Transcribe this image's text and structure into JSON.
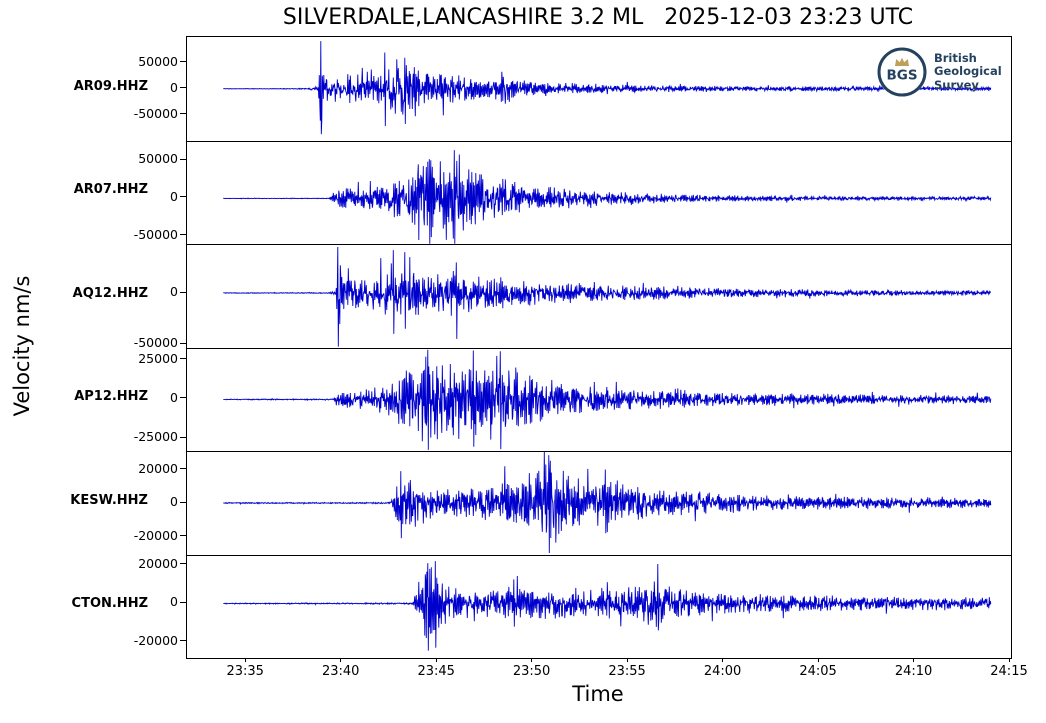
{
  "logo": {
    "abbr": "BGS",
    "line1": "British",
    "line2": "Geological",
    "line3": "Survey",
    "navy": "#24425f",
    "gold": "#bfa05a"
  },
  "chart_data": {
    "type": "line",
    "title": "SILVERDALE,LANCASHIRE 3.2 ML   2025-12-03 23:23 UTC",
    "xlabel": "Time",
    "ylabel": "Velocity nm/s",
    "trace_color": "#0000cd",
    "axis_color": "#000000",
    "grid": false,
    "t_min": 31.9,
    "t_max": 75.05,
    "x_ticks": [
      {
        "t": 35,
        "label": "23:35"
      },
      {
        "t": 40,
        "label": "23:40"
      },
      {
        "t": 45,
        "label": "23:45"
      },
      {
        "t": 50,
        "label": "23:50"
      },
      {
        "t": 55,
        "label": "23:55"
      },
      {
        "t": 60,
        "label": "24:00"
      },
      {
        "t": 65,
        "label": "24:05"
      },
      {
        "t": 70,
        "label": "24:10"
      },
      {
        "t": 75,
        "label": "24:15"
      }
    ],
    "stations": [
      {
        "label": "AR09.HHZ",
        "seed": 11,
        "ylim": [
          -100000,
          100000
        ],
        "yticks": [
          50000,
          0,
          -50000
        ],
        "data_start": 33.8,
        "data_end": 74.0,
        "envelope": [
          [
            33.8,
            500
          ],
          [
            37.5,
            700
          ],
          [
            38.3,
            1500
          ],
          [
            38.75,
            6000
          ],
          [
            38.9,
            95000
          ],
          [
            39.1,
            30000
          ],
          [
            39.6,
            28000
          ],
          [
            40.5,
            30000
          ],
          [
            41.5,
            25000
          ],
          [
            42.3,
            45000
          ],
          [
            42.9,
            60000
          ],
          [
            43.4,
            50000
          ],
          [
            44.2,
            35000
          ],
          [
            45.5,
            30000
          ],
          [
            46.5,
            28000
          ],
          [
            47.5,
            22000
          ],
          [
            48.6,
            30000
          ],
          [
            49.5,
            18000
          ],
          [
            51,
            13000
          ],
          [
            53,
            10000
          ],
          [
            55.5,
            7500
          ],
          [
            58,
            6000
          ],
          [
            61,
            5200
          ],
          [
            64,
            4800
          ],
          [
            68,
            4300
          ],
          [
            71,
            4000
          ],
          [
            74,
            3800
          ]
        ],
        "spikes": [
          [
            38.9,
            92000,
            -88000
          ],
          [
            42.25,
            70000,
            -72000
          ],
          [
            43.3,
            60000,
            -68000
          ]
        ]
      },
      {
        "label": "AR07.HHZ",
        "seed": 22,
        "ylim": [
          -61000,
          76000
        ],
        "yticks": [
          50000,
          0,
          -50000
        ],
        "data_start": 33.8,
        "data_end": 74.0,
        "envelope": [
          [
            33.8,
            400
          ],
          [
            39.3,
            500
          ],
          [
            39.6,
            9000
          ],
          [
            40.2,
            16000
          ],
          [
            41,
            14000
          ],
          [
            42,
            18000
          ],
          [
            43,
            28000
          ],
          [
            43.8,
            40000
          ],
          [
            44.5,
            60000
          ],
          [
            45.3,
            55000
          ],
          [
            46.2,
            60000
          ],
          [
            47,
            40000
          ],
          [
            48,
            28000
          ],
          [
            49.5,
            20000
          ],
          [
            51,
            15000
          ],
          [
            53,
            11000
          ],
          [
            55,
            8000
          ],
          [
            57.5,
            6000
          ],
          [
            60,
            4500
          ],
          [
            63,
            3500
          ],
          [
            66.5,
            3000
          ],
          [
            70,
            2700
          ],
          [
            74,
            2500
          ]
        ],
        "spikes": [
          [
            44.0,
            45000,
            -55000
          ],
          [
            44.6,
            52000,
            -60000
          ],
          [
            45.9,
            64000,
            -60000
          ]
        ]
      },
      {
        "label": "AQ12.HHZ",
        "seed": 33,
        "ylim": [
          -53400,
          48000
        ],
        "yticks": [
          0,
          -50000
        ],
        "data_start": 33.8,
        "data_end": 74.0,
        "envelope": [
          [
            33.8,
            350
          ],
          [
            39.3,
            450
          ],
          [
            39.7,
            2000
          ],
          [
            39.8,
            45000
          ],
          [
            40.1,
            18000
          ],
          [
            41,
            14000
          ],
          [
            41.8,
            17000
          ],
          [
            42.5,
            30000
          ],
          [
            43.2,
            32000
          ],
          [
            44,
            25000
          ],
          [
            44.8,
            22000
          ],
          [
            45.8,
            26000
          ],
          [
            46.5,
            22000
          ],
          [
            47.5,
            18000
          ],
          [
            49,
            14000
          ],
          [
            50.5,
            12000
          ],
          [
            52.5,
            10000
          ],
          [
            54.5,
            8000
          ],
          [
            57,
            6500
          ],
          [
            59.5,
            5000
          ],
          [
            62,
            4200
          ],
          [
            65,
            3600
          ],
          [
            68,
            3200
          ],
          [
            71,
            2900
          ],
          [
            74,
            2700
          ]
        ],
        "spikes": [
          [
            39.8,
            45000,
            -52500
          ],
          [
            42.7,
            42000,
            -40000
          ],
          [
            43.3,
            40000,
            -35000
          ],
          [
            46.0,
            30000,
            -45000
          ]
        ]
      },
      {
        "label": "AP12.HHZ",
        "seed": 44,
        "ylim": [
          -33000,
          32600
        ],
        "yticks": [
          25000,
          0,
          -25000
        ],
        "data_start": 33.8,
        "data_end": 74.0,
        "envelope": [
          [
            33.8,
            300
          ],
          [
            39.5,
            400
          ],
          [
            39.9,
            4500
          ],
          [
            40.8,
            6500
          ],
          [
            41.8,
            8000
          ],
          [
            42.6,
            12000
          ],
          [
            43.4,
            20000
          ],
          [
            44.3,
            28000
          ],
          [
            45.2,
            30000
          ],
          [
            46.2,
            26000
          ],
          [
            47.2,
            28000
          ],
          [
            48.2,
            29000
          ],
          [
            49,
            22000
          ],
          [
            50,
            16000
          ],
          [
            51.2,
            12000
          ],
          [
            52.5,
            9500
          ],
          [
            54,
            8000
          ],
          [
            56,
            6500
          ],
          [
            58.5,
            5200
          ],
          [
            61,
            4400
          ],
          [
            64,
            3800
          ],
          [
            67,
            3400
          ],
          [
            70.5,
            3100
          ],
          [
            74,
            2900
          ]
        ],
        "spikes": [
          [
            44.5,
            31500,
            -32000
          ],
          [
            46.9,
            31000,
            -30000
          ],
          [
            48.3,
            30500,
            -31500
          ]
        ]
      },
      {
        "label": "KESW.HHZ",
        "seed": 55,
        "ylim": [
          -30700,
          31000
        ],
        "yticks": [
          20000,
          0,
          -20000
        ],
        "data_start": 33.8,
        "data_end": 74.0,
        "envelope": [
          [
            33.8,
            350
          ],
          [
            42.5,
            450
          ],
          [
            42.9,
            14000
          ],
          [
            43.4,
            18000
          ],
          [
            44.2,
            13000
          ],
          [
            45,
            9500
          ],
          [
            46,
            8500
          ],
          [
            47,
            10000
          ],
          [
            48,
            12000
          ],
          [
            49,
            14000
          ],
          [
            50,
            20000
          ],
          [
            50.9,
            26000
          ],
          [
            51.6,
            20000
          ],
          [
            52.6,
            17000
          ],
          [
            53.6,
            16000
          ],
          [
            54.6,
            12000
          ],
          [
            56,
            10000
          ],
          [
            57.5,
            8500
          ],
          [
            59,
            7000
          ],
          [
            61,
            5500
          ],
          [
            63.5,
            4500
          ],
          [
            66,
            4000
          ],
          [
            69,
            3600
          ],
          [
            71.5,
            3300
          ],
          [
            74,
            3000
          ]
        ],
        "spikes": [
          [
            43.1,
            19000,
            -21000
          ],
          [
            50.85,
            28500,
            -29800
          ],
          [
            53.8,
            20000,
            -18000
          ]
        ]
      },
      {
        "label": "CTON.HHZ",
        "seed": 66,
        "ylim": [
          -28600,
          25200
        ],
        "yticks": [
          20000,
          0,
          -20000
        ],
        "data_start": 33.8,
        "data_end": 74.0,
        "envelope": [
          [
            33.8,
            300
          ],
          [
            43.7,
            400
          ],
          [
            44.2,
            18000
          ],
          [
            44.7,
            23000
          ],
          [
            45.2,
            14000
          ],
          [
            45.8,
            9000
          ],
          [
            46.8,
            7000
          ],
          [
            48,
            7500
          ],
          [
            49.3,
            9000
          ],
          [
            50.5,
            8000
          ],
          [
            51.8,
            9500
          ],
          [
            53,
            8500
          ],
          [
            54.2,
            8000
          ],
          [
            55.5,
            9000
          ],
          [
            56.4,
            14000
          ],
          [
            56.8,
            12000
          ],
          [
            57.8,
            8000
          ],
          [
            59,
            6500
          ],
          [
            60.5,
            5500
          ],
          [
            62.5,
            5000
          ],
          [
            65,
            4500
          ],
          [
            68,
            4000
          ],
          [
            71,
            3700
          ],
          [
            74,
            3500
          ]
        ],
        "spikes": [
          [
            44.5,
            21000,
            -24500
          ],
          [
            44.9,
            22000,
            -23000
          ],
          [
            49.0,
            12500,
            -12000
          ],
          [
            56.55,
            20500,
            -14000
          ]
        ]
      }
    ]
  }
}
